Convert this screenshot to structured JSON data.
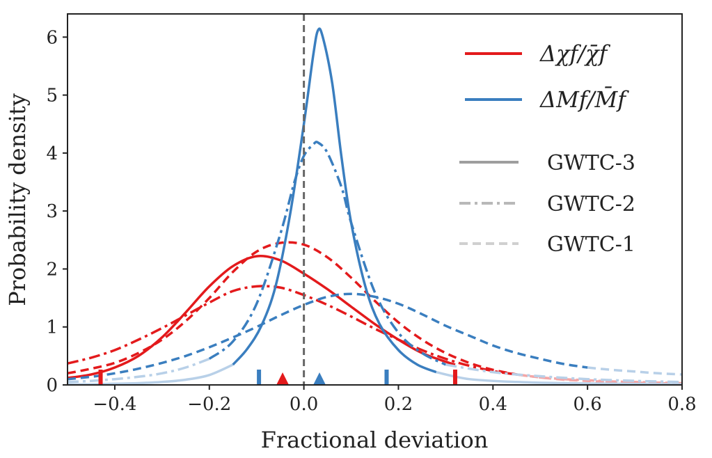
{
  "chart_data": {
    "type": "line",
    "xlabel": "Fractional deviation",
    "ylabel": "Probability density",
    "xlim": [
      -0.5,
      0.8
    ],
    "ylim": [
      0,
      6.4
    ],
    "xticks": [
      -0.4,
      -0.2,
      0.0,
      0.2,
      0.4,
      0.6,
      0.8
    ],
    "xtick_labels": [
      "−0.4",
      "−0.2",
      "0.0",
      "0.2",
      "0.4",
      "0.6",
      "0.8"
    ],
    "yticks": [
      0,
      1,
      2,
      3,
      4,
      5,
      6
    ],
    "ytick_labels": [
      "0",
      "1",
      "2",
      "3",
      "4",
      "5",
      "6"
    ],
    "grid": false,
    "legend_position": "top-right",
    "vline_x": 0.0,
    "colors": {
      "red": "#e31a1c",
      "blue": "#3a7ebf",
      "red_light": "#f4a6a6",
      "blue_light": "#b8d0e8",
      "gray": "#9e9e9e",
      "vline": "#666666"
    },
    "legend": {
      "quantities": [
        {
          "label": "Δχf/χ̄f",
          "color": "#e31a1c"
        },
        {
          "label": "ΔMf/M̄f",
          "color": "#3a7ebf"
        }
      ],
      "catalogs": [
        {
          "label": "GWTC-3",
          "style": "solid"
        },
        {
          "label": "GWTC-2",
          "style": "dashdot"
        },
        {
          "label": "GWTC-1",
          "style": "dashed"
        }
      ]
    },
    "series": [
      {
        "quantity": "chi",
        "catalog": "GWTC-3",
        "color": "#e31a1c",
        "style": "solid",
        "x": [
          -0.5,
          -0.45,
          -0.4,
          -0.35,
          -0.3,
          -0.25,
          -0.2,
          -0.15,
          -0.1,
          -0.05,
          0.0,
          0.05,
          0.1,
          0.15,
          0.2,
          0.25,
          0.3,
          0.32
        ],
        "y": [
          0.12,
          0.18,
          0.3,
          0.5,
          0.82,
          1.25,
          1.7,
          2.05,
          2.22,
          2.15,
          1.92,
          1.65,
          1.35,
          1.05,
          0.78,
          0.55,
          0.4,
          0.35
        ]
      },
      {
        "quantity": "chi",
        "catalog": "GWTC-2",
        "color": "#e31a1c",
        "style": "dashdot",
        "x": [
          -0.5,
          -0.45,
          -0.4,
          -0.35,
          -0.3,
          -0.25,
          -0.2,
          -0.15,
          -0.1,
          -0.05,
          0.0,
          0.05,
          0.1,
          0.15,
          0.2,
          0.25,
          0.3,
          0.35,
          0.4,
          0.45
        ],
        "y": [
          0.37,
          0.47,
          0.6,
          0.78,
          0.98,
          1.2,
          1.42,
          1.62,
          1.7,
          1.68,
          1.55,
          1.38,
          1.18,
          0.97,
          0.78,
          0.6,
          0.45,
          0.33,
          0.24,
          0.18
        ]
      },
      {
        "quantity": "chi",
        "catalog": "GWTC-2",
        "color": "#f4a6a6",
        "style": "dashdot",
        "x": [
          0.45,
          0.5,
          0.55,
          0.6,
          0.65,
          0.7,
          0.75,
          0.8
        ],
        "y": [
          0.18,
          0.13,
          0.1,
          0.08,
          0.06,
          0.05,
          0.04,
          0.03
        ]
      },
      {
        "quantity": "chi",
        "catalog": "GWTC-1",
        "color": "#e31a1c",
        "style": "dashed",
        "x": [
          -0.5,
          -0.45,
          -0.4,
          -0.35,
          -0.3,
          -0.25,
          -0.2,
          -0.15,
          -0.1,
          -0.05,
          0.0,
          0.05,
          0.1,
          0.15,
          0.2,
          0.25,
          0.3,
          0.35,
          0.4,
          0.45
        ],
        "y": [
          0.2,
          0.28,
          0.38,
          0.55,
          0.78,
          1.1,
          1.5,
          1.95,
          2.3,
          2.45,
          2.42,
          2.2,
          1.85,
          1.45,
          1.08,
          0.78,
          0.55,
          0.38,
          0.26,
          0.18
        ]
      },
      {
        "quantity": "chi",
        "catalog": "GWTC-1",
        "color": "#f4a6a6",
        "style": "dashed",
        "x": [
          0.45,
          0.5,
          0.55,
          0.6,
          0.65,
          0.7,
          0.75,
          0.8
        ],
        "y": [
          0.18,
          0.13,
          0.09,
          0.07,
          0.05,
          0.04,
          0.03,
          0.02
        ]
      },
      {
        "quantity": "M",
        "catalog": "GWTC-3",
        "color": "#b8d0e8",
        "style": "solid",
        "x": [
          -0.5,
          -0.45,
          -0.4,
          -0.35,
          -0.3,
          -0.25,
          -0.2,
          -0.15
        ],
        "y": [
          0.01,
          0.01,
          0.02,
          0.03,
          0.05,
          0.09,
          0.17,
          0.35
        ]
      },
      {
        "quantity": "M",
        "catalog": "GWTC-3",
        "color": "#3a7ebf",
        "style": "solid",
        "x": [
          -0.15,
          -0.12,
          -0.09,
          -0.06,
          -0.03,
          0.0,
          0.02,
          0.03,
          0.04,
          0.06,
          0.08,
          0.1,
          0.13,
          0.16,
          0.2,
          0.24,
          0.28
        ],
        "y": [
          0.35,
          0.62,
          1.02,
          1.7,
          2.9,
          4.5,
          5.7,
          6.12,
          6.0,
          5.2,
          3.9,
          2.8,
          1.7,
          1.05,
          0.6,
          0.35,
          0.22
        ]
      },
      {
        "quantity": "M",
        "catalog": "GWTC-3",
        "color": "#b8d0e8",
        "style": "solid",
        "x": [
          0.28,
          0.35,
          0.45,
          0.55,
          0.65,
          0.8
        ],
        "y": [
          0.22,
          0.1,
          0.05,
          0.03,
          0.02,
          0.01
        ]
      },
      {
        "quantity": "M",
        "catalog": "GWTC-2",
        "color": "#b8d0e8",
        "style": "dashdot",
        "x": [
          -0.5,
          -0.45,
          -0.4,
          -0.35,
          -0.3,
          -0.25,
          -0.2
        ],
        "y": [
          0.05,
          0.07,
          0.1,
          0.14,
          0.2,
          0.3,
          0.45
        ]
      },
      {
        "quantity": "M",
        "catalog": "GWTC-2",
        "color": "#3a7ebf",
        "style": "dashdot",
        "x": [
          -0.2,
          -0.15,
          -0.1,
          -0.05,
          -0.02,
          0.0,
          0.02,
          0.03,
          0.05,
          0.08,
          0.1,
          0.15,
          0.2,
          0.25,
          0.3
        ],
        "y": [
          0.45,
          0.75,
          1.4,
          2.6,
          3.5,
          3.95,
          4.15,
          4.18,
          4.0,
          3.4,
          2.8,
          1.6,
          0.9,
          0.55,
          0.35
        ]
      },
      {
        "quantity": "M",
        "catalog": "GWTC-2",
        "color": "#b8d0e8",
        "style": "dashdot",
        "x": [
          0.3,
          0.4,
          0.5,
          0.6,
          0.7,
          0.8
        ],
        "y": [
          0.35,
          0.22,
          0.15,
          0.1,
          0.07,
          0.05
        ]
      },
      {
        "quantity": "M",
        "catalog": "GWTC-1",
        "color": "#3a7ebf",
        "style": "dashed",
        "x": [
          -0.5,
          -0.45,
          -0.4,
          -0.35,
          -0.3,
          -0.25,
          -0.2,
          -0.15,
          -0.1,
          -0.05,
          0.0,
          0.05,
          0.1,
          0.15,
          0.2,
          0.25,
          0.3,
          0.35,
          0.4,
          0.45,
          0.5,
          0.55,
          0.6
        ],
        "y": [
          0.1,
          0.14,
          0.2,
          0.28,
          0.38,
          0.5,
          0.65,
          0.82,
          1.0,
          1.2,
          1.38,
          1.52,
          1.57,
          1.52,
          1.4,
          1.22,
          1.02,
          0.85,
          0.68,
          0.55,
          0.45,
          0.36,
          0.3
        ]
      },
      {
        "quantity": "M",
        "catalog": "GWTC-1",
        "color": "#b8d0e8",
        "style": "dashed",
        "x": [
          0.6,
          0.65,
          0.7,
          0.75,
          0.8
        ],
        "y": [
          0.3,
          0.26,
          0.23,
          0.2,
          0.18
        ]
      }
    ],
    "interval_markers": [
      {
        "quantity": "chi",
        "x": -0.43,
        "color": "#e31a1c"
      },
      {
        "quantity": "chi",
        "x": 0.32,
        "color": "#e31a1c"
      },
      {
        "quantity": "M",
        "x": -0.095,
        "color": "#3a7ebf"
      },
      {
        "quantity": "M",
        "x": 0.175,
        "color": "#3a7ebf"
      }
    ],
    "median_markers": [
      {
        "quantity": "chi",
        "x": -0.045,
        "color": "#e31a1c"
      },
      {
        "quantity": "M",
        "x": 0.033,
        "color": "#3a7ebf"
      }
    ]
  }
}
